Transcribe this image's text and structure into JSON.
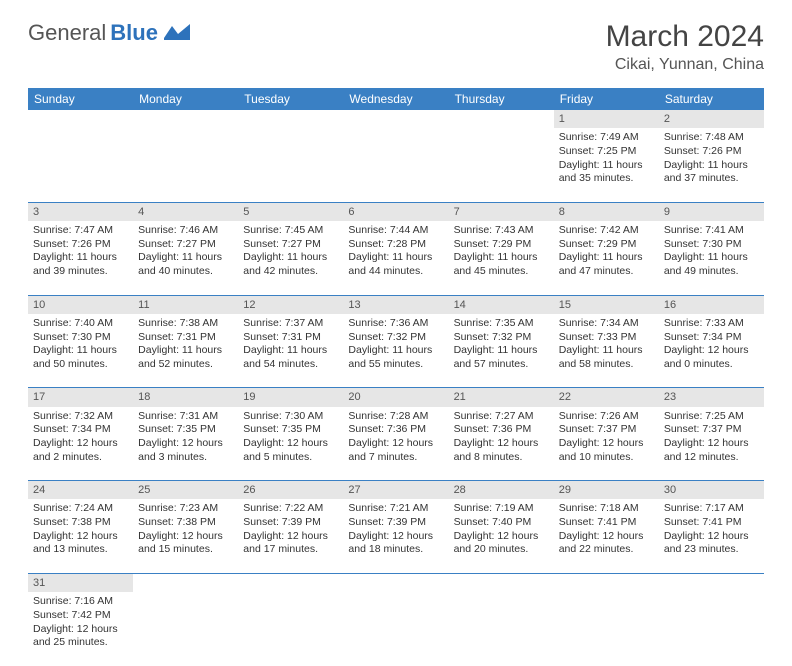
{
  "brand": {
    "part1": "General",
    "part2": "Blue"
  },
  "title": "March 2024",
  "location": "Cikai, Yunnan, China",
  "colors": {
    "header_bg": "#3a80c4",
    "daynum_bg": "#e6e6e6",
    "text": "#333333",
    "brand_blue": "#2d72bb"
  },
  "weekdays": [
    "Sunday",
    "Monday",
    "Tuesday",
    "Wednesday",
    "Thursday",
    "Friday",
    "Saturday"
  ],
  "weeks": [
    {
      "nums": [
        "",
        "",
        "",
        "",
        "",
        "1",
        "2"
      ],
      "cells": [
        null,
        null,
        null,
        null,
        null,
        {
          "sunrise": "Sunrise: 7:49 AM",
          "sunset": "Sunset: 7:25 PM",
          "day1": "Daylight: 11 hours",
          "day2": "and 35 minutes."
        },
        {
          "sunrise": "Sunrise: 7:48 AM",
          "sunset": "Sunset: 7:26 PM",
          "day1": "Daylight: 11 hours",
          "day2": "and 37 minutes."
        }
      ]
    },
    {
      "nums": [
        "3",
        "4",
        "5",
        "6",
        "7",
        "8",
        "9"
      ],
      "cells": [
        {
          "sunrise": "Sunrise: 7:47 AM",
          "sunset": "Sunset: 7:26 PM",
          "day1": "Daylight: 11 hours",
          "day2": "and 39 minutes."
        },
        {
          "sunrise": "Sunrise: 7:46 AM",
          "sunset": "Sunset: 7:27 PM",
          "day1": "Daylight: 11 hours",
          "day2": "and 40 minutes."
        },
        {
          "sunrise": "Sunrise: 7:45 AM",
          "sunset": "Sunset: 7:27 PM",
          "day1": "Daylight: 11 hours",
          "day2": "and 42 minutes."
        },
        {
          "sunrise": "Sunrise: 7:44 AM",
          "sunset": "Sunset: 7:28 PM",
          "day1": "Daylight: 11 hours",
          "day2": "and 44 minutes."
        },
        {
          "sunrise": "Sunrise: 7:43 AM",
          "sunset": "Sunset: 7:29 PM",
          "day1": "Daylight: 11 hours",
          "day2": "and 45 minutes."
        },
        {
          "sunrise": "Sunrise: 7:42 AM",
          "sunset": "Sunset: 7:29 PM",
          "day1": "Daylight: 11 hours",
          "day2": "and 47 minutes."
        },
        {
          "sunrise": "Sunrise: 7:41 AM",
          "sunset": "Sunset: 7:30 PM",
          "day1": "Daylight: 11 hours",
          "day2": "and 49 minutes."
        }
      ]
    },
    {
      "nums": [
        "10",
        "11",
        "12",
        "13",
        "14",
        "15",
        "16"
      ],
      "cells": [
        {
          "sunrise": "Sunrise: 7:40 AM",
          "sunset": "Sunset: 7:30 PM",
          "day1": "Daylight: 11 hours",
          "day2": "and 50 minutes."
        },
        {
          "sunrise": "Sunrise: 7:38 AM",
          "sunset": "Sunset: 7:31 PM",
          "day1": "Daylight: 11 hours",
          "day2": "and 52 minutes."
        },
        {
          "sunrise": "Sunrise: 7:37 AM",
          "sunset": "Sunset: 7:31 PM",
          "day1": "Daylight: 11 hours",
          "day2": "and 54 minutes."
        },
        {
          "sunrise": "Sunrise: 7:36 AM",
          "sunset": "Sunset: 7:32 PM",
          "day1": "Daylight: 11 hours",
          "day2": "and 55 minutes."
        },
        {
          "sunrise": "Sunrise: 7:35 AM",
          "sunset": "Sunset: 7:32 PM",
          "day1": "Daylight: 11 hours",
          "day2": "and 57 minutes."
        },
        {
          "sunrise": "Sunrise: 7:34 AM",
          "sunset": "Sunset: 7:33 PM",
          "day1": "Daylight: 11 hours",
          "day2": "and 58 minutes."
        },
        {
          "sunrise": "Sunrise: 7:33 AM",
          "sunset": "Sunset: 7:34 PM",
          "day1": "Daylight: 12 hours",
          "day2": "and 0 minutes."
        }
      ]
    },
    {
      "nums": [
        "17",
        "18",
        "19",
        "20",
        "21",
        "22",
        "23"
      ],
      "cells": [
        {
          "sunrise": "Sunrise: 7:32 AM",
          "sunset": "Sunset: 7:34 PM",
          "day1": "Daylight: 12 hours",
          "day2": "and 2 minutes."
        },
        {
          "sunrise": "Sunrise: 7:31 AM",
          "sunset": "Sunset: 7:35 PM",
          "day1": "Daylight: 12 hours",
          "day2": "and 3 minutes."
        },
        {
          "sunrise": "Sunrise: 7:30 AM",
          "sunset": "Sunset: 7:35 PM",
          "day1": "Daylight: 12 hours",
          "day2": "and 5 minutes."
        },
        {
          "sunrise": "Sunrise: 7:28 AM",
          "sunset": "Sunset: 7:36 PM",
          "day1": "Daylight: 12 hours",
          "day2": "and 7 minutes."
        },
        {
          "sunrise": "Sunrise: 7:27 AM",
          "sunset": "Sunset: 7:36 PM",
          "day1": "Daylight: 12 hours",
          "day2": "and 8 minutes."
        },
        {
          "sunrise": "Sunrise: 7:26 AM",
          "sunset": "Sunset: 7:37 PM",
          "day1": "Daylight: 12 hours",
          "day2": "and 10 minutes."
        },
        {
          "sunrise": "Sunrise: 7:25 AM",
          "sunset": "Sunset: 7:37 PM",
          "day1": "Daylight: 12 hours",
          "day2": "and 12 minutes."
        }
      ]
    },
    {
      "nums": [
        "24",
        "25",
        "26",
        "27",
        "28",
        "29",
        "30"
      ],
      "cells": [
        {
          "sunrise": "Sunrise: 7:24 AM",
          "sunset": "Sunset: 7:38 PM",
          "day1": "Daylight: 12 hours",
          "day2": "and 13 minutes."
        },
        {
          "sunrise": "Sunrise: 7:23 AM",
          "sunset": "Sunset: 7:38 PM",
          "day1": "Daylight: 12 hours",
          "day2": "and 15 minutes."
        },
        {
          "sunrise": "Sunrise: 7:22 AM",
          "sunset": "Sunset: 7:39 PM",
          "day1": "Daylight: 12 hours",
          "day2": "and 17 minutes."
        },
        {
          "sunrise": "Sunrise: 7:21 AM",
          "sunset": "Sunset: 7:39 PM",
          "day1": "Daylight: 12 hours",
          "day2": "and 18 minutes."
        },
        {
          "sunrise": "Sunrise: 7:19 AM",
          "sunset": "Sunset: 7:40 PM",
          "day1": "Daylight: 12 hours",
          "day2": "and 20 minutes."
        },
        {
          "sunrise": "Sunrise: 7:18 AM",
          "sunset": "Sunset: 7:41 PM",
          "day1": "Daylight: 12 hours",
          "day2": "and 22 minutes."
        },
        {
          "sunrise": "Sunrise: 7:17 AM",
          "sunset": "Sunset: 7:41 PM",
          "day1": "Daylight: 12 hours",
          "day2": "and 23 minutes."
        }
      ]
    },
    {
      "nums": [
        "31",
        "",
        "",
        "",
        "",
        "",
        ""
      ],
      "cells": [
        {
          "sunrise": "Sunrise: 7:16 AM",
          "sunset": "Sunset: 7:42 PM",
          "day1": "Daylight: 12 hours",
          "day2": "and 25 minutes."
        },
        null,
        null,
        null,
        null,
        null,
        null
      ]
    }
  ]
}
